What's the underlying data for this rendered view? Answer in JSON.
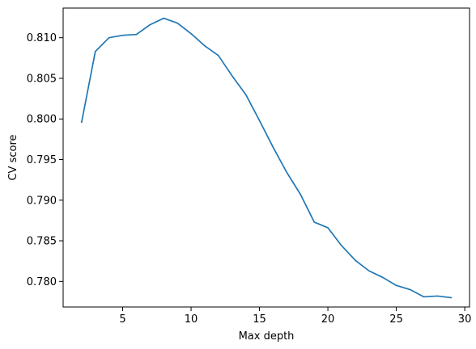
{
  "chart_data": {
    "type": "line",
    "xlabel": "Max depth",
    "ylabel": "CV score",
    "xlim": [
      0.65,
      30.35
    ],
    "ylim": [
      0.77685,
      0.81365
    ],
    "xticks": [
      5,
      10,
      15,
      20,
      25,
      30
    ],
    "yticks": [
      0.78,
      0.785,
      0.79,
      0.795,
      0.8,
      0.805,
      0.81
    ],
    "ytick_labels": [
      "0.780",
      "0.785",
      "0.790",
      "0.795",
      "0.800",
      "0.805",
      "0.810"
    ],
    "grid": false,
    "legend": "none",
    "series": [
      {
        "color": "#1f77b4",
        "x": [
          2,
          3,
          4,
          5,
          6,
          7,
          8,
          9,
          10,
          11,
          12,
          13,
          14,
          15,
          16,
          17,
          18,
          19,
          20,
          21,
          22,
          23,
          24,
          25,
          26,
          27,
          28,
          29
        ],
        "y": [
          0.7996,
          0.8083,
          0.81,
          0.8103,
          0.8104,
          0.8116,
          0.8124,
          0.8118,
          0.8105,
          0.809,
          0.8078,
          0.8053,
          0.803,
          0.7998,
          0.7965,
          0.7934,
          0.7907,
          0.7873,
          0.7866,
          0.7844,
          0.7826,
          0.7813,
          0.7805,
          0.7795,
          0.779,
          0.7781,
          0.7782,
          0.778
        ]
      }
    ]
  }
}
